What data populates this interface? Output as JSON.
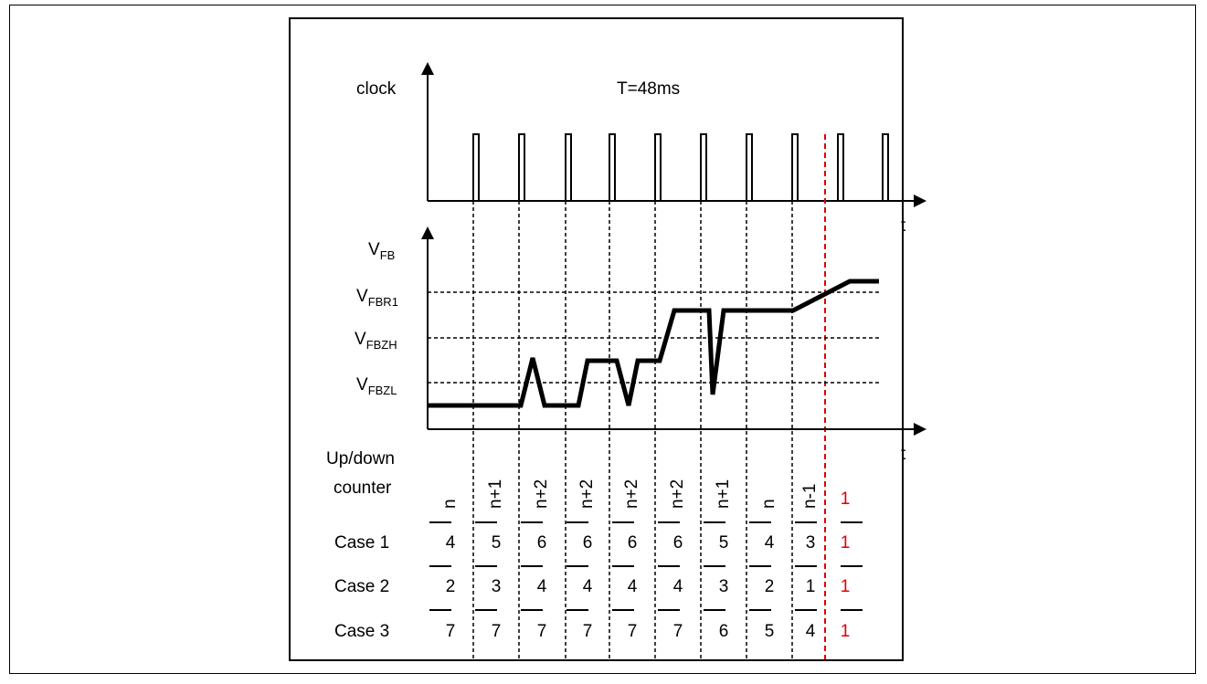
{
  "clock_label": "clock",
  "period_label": "T=48ms",
  "time_label": "t",
  "vfb_label": {
    "main": "V",
    "sub": "FB"
  },
  "levels": [
    {
      "main": "V",
      "sub": "FBR1"
    },
    {
      "main": "V",
      "sub": "FBZH"
    },
    {
      "main": "V",
      "sub": "FBZL"
    }
  ],
  "counter_label_1": "Up/down",
  "counter_label_2": "counter",
  "counter_values": [
    "n",
    "n+1",
    "n+2",
    "n+2",
    "n+2",
    "n+2",
    "n+1",
    "n",
    "n-1",
    "1"
  ],
  "cases": [
    {
      "label": "Case 1",
      "values": [
        "4",
        "5",
        "6",
        "6",
        "6",
        "6",
        "5",
        "4",
        "3",
        "1"
      ]
    },
    {
      "label": "Case 2",
      "values": [
        "2",
        "3",
        "4",
        "4",
        "4",
        "4",
        "3",
        "2",
        "1",
        "1"
      ]
    },
    {
      "label": "Case 3",
      "values": [
        "7",
        "7",
        "7",
        "7",
        "7",
        "7",
        "6",
        "5",
        "4",
        "1"
      ]
    }
  ],
  "colors": {
    "highlight": "#e00000",
    "line": "#000000"
  }
}
